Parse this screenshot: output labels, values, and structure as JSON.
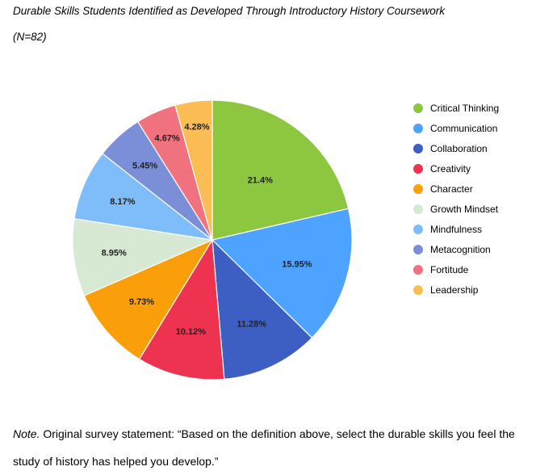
{
  "figure": {
    "title": "Durable Skills Students Identified as Developed Through Introductory History Coursework",
    "subtitle": "(N=82)"
  },
  "chart_data": {
    "type": "pie",
    "title": "Durable Skills Students Identified as Developed Through Introductory History Coursework",
    "subtitle": "(N=82)",
    "legend_position": "right",
    "categories": [
      "Critical Thinking",
      "Communication",
      "Collaboration",
      "Creativity",
      "Character",
      "Growth Mindset",
      "Mindfulness",
      "Metacognition",
      "Fortitude",
      "Leadership"
    ],
    "values": [
      21.4,
      15.95,
      11.28,
      10.12,
      9.73,
      8.95,
      8.17,
      5.45,
      4.67,
      4.28
    ],
    "labels": [
      "21.4%",
      "15.95%",
      "11.28%",
      "10.12%",
      "9.73%",
      "8.95%",
      "8.17%",
      "5.45%",
      "4.67%",
      "4.28%"
    ],
    "colors": [
      "#8DC63F",
      "#4DA3FF",
      "#3D5FC4",
      "#EE3350",
      "#FA9F0A",
      "#D7E8D3",
      "#7EBDFA",
      "#7B8FD9",
      "#F0727F",
      "#FCBD54"
    ]
  },
  "note": {
    "prefix": "Note.",
    "text": " Original survey statement: “Based on the definition above, select the durable skills you feel the study of history has helped you develop.”"
  }
}
